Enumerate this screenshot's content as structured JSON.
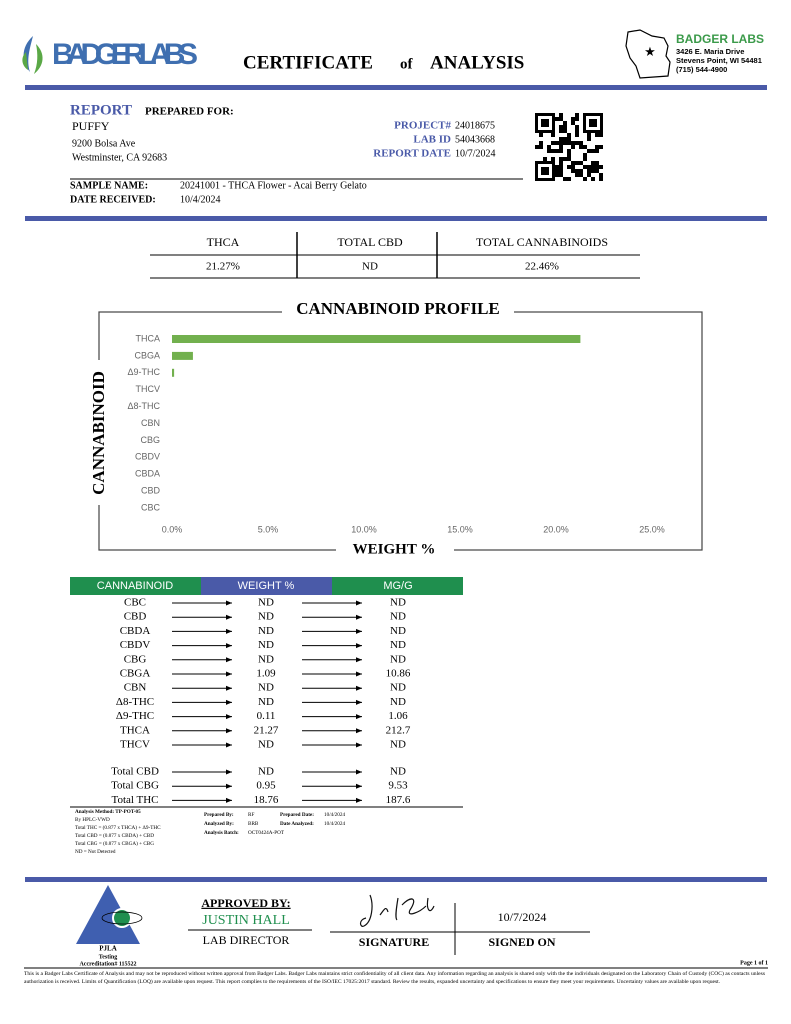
{
  "header": {
    "brand": "BADGER LABS",
    "title": [
      "CERTIFICATE",
      "of",
      "ANALYSIS"
    ],
    "lab_name": "BADGER LABS",
    "lab_address": [
      "3426 E. Maria Drive",
      "Stevens Point, WI 54481",
      "(715) 544-4900"
    ]
  },
  "report": {
    "heading": "REPORT",
    "subheading": "PREPARED FOR:",
    "client": "PUFFY",
    "address": [
      "9200 Bolsa Ave",
      "Westminster, CA 92683"
    ],
    "fields": [
      {
        "label": "PROJECT#",
        "value": "24018675"
      },
      {
        "label": "LAB ID",
        "value": "54043668"
      },
      {
        "label": "REPORT DATE",
        "value": "10/7/2024"
      }
    ],
    "sample": [
      {
        "label": "SAMPLE NAME:",
        "value": "20241001 - THCA Flower - Acai Berry Gelato"
      },
      {
        "label": "DATE RECEIVED:",
        "value": "10/4/2024"
      }
    ]
  },
  "summary": {
    "headers": [
      "THCA",
      "TOTAL CBD",
      "TOTAL CANNABINOIDS"
    ],
    "values": [
      "21.27%",
      "ND",
      "22.46%"
    ]
  },
  "chart_data": {
    "type": "bar",
    "orientation": "horizontal",
    "title": "CANNABINOID PROFILE",
    "ylabel": "CANNABINOID",
    "xlabel": "WEIGHT %",
    "categories": [
      "THCA",
      "CBGA",
      "Δ9-THC",
      "THCV",
      "Δ8-THC",
      "CBN",
      "CBG",
      "CBDV",
      "CBDA",
      "CBD",
      "CBC"
    ],
    "values": [
      21.27,
      1.09,
      0.11,
      0,
      0,
      0,
      0,
      0,
      0,
      0,
      0
    ],
    "color": "#72b04e",
    "xlim": [
      0,
      25
    ],
    "xticks": [
      {
        "value": 0,
        "label": "0.0%"
      },
      {
        "value": 5,
        "label": "5.0%"
      },
      {
        "value": 10,
        "label": "10.0%"
      },
      {
        "value": 15,
        "label": "15.0%"
      },
      {
        "value": 20,
        "label": "20.0%"
      },
      {
        "value": 25,
        "label": "25.0%"
      }
    ],
    "grid": false
  },
  "results": {
    "headers": [
      "CANNABINOID",
      "WEIGHT %",
      "MG/G"
    ],
    "rows": [
      [
        "CBC",
        "ND",
        "ND"
      ],
      [
        "CBD",
        "ND",
        "ND"
      ],
      [
        "CBDA",
        "ND",
        "ND"
      ],
      [
        "CBDV",
        "ND",
        "ND"
      ],
      [
        "CBG",
        "ND",
        "ND"
      ],
      [
        "CBGA",
        1.09,
        10.86
      ],
      [
        "CBN",
        "ND",
        "ND"
      ],
      [
        "Δ8-THC",
        "ND",
        "ND"
      ],
      [
        "Δ9-THC",
        0.11,
        1.06
      ],
      [
        "THCA",
        21.27,
        212.7
      ],
      [
        "THCV",
        "ND",
        "ND"
      ]
    ],
    "totals": [
      [
        "Total CBD",
        "ND",
        "ND"
      ],
      [
        "Total CBG",
        0.95,
        9.53
      ],
      [
        "Total THC",
        18.76,
        187.6
      ]
    ]
  },
  "method_notes": [
    "Analysis Method: TP-POT-05",
    "By HPLC-VWD",
    "Total THC = (0.877 x THCA) + Δ9-THC",
    "Total CBD = (0.877 x CBDA) + CBD",
    "Total CBG = (0.877 x CBGA) + CBG",
    "ND = Not Detected"
  ],
  "prep": [
    {
      "label": "Prepared By:",
      "value": "RF"
    },
    {
      "label": "Prepared Date:",
      "value": "10/4/2024"
    },
    {
      "label": "Analyzed By:",
      "value": "BRB"
    },
    {
      "label": "Date Analyzed:",
      "value": "10/4/2024"
    },
    {
      "label": "Analysis Batch:",
      "value": "OCT0424A-POT"
    }
  ],
  "footer": {
    "accreditation": [
      "PJLA",
      "Testing",
      "Accreditation# 115522"
    ],
    "approval_heading": "APPROVED BY:",
    "approver": "JUSTIN HALL",
    "role": "LAB DIRECTOR",
    "signature_label": "SIGNATURE",
    "signed_date": "10/7/2024",
    "signed_label": "SIGNED ON",
    "page": "Page 1 of 1",
    "disclaimer": "This is a Badger Labs Certificate of Analysis and may not be reproduced without written approval from Badger Labs. Badger Labs maintains strict confidentiality of all client data. Any information regarding an analysis is shared only with the the individuals designated on the Laboratory Chain of Custody (COC) as contacts unless authorization is received. Limits of Quantification (LOQ) are available upon request. This report complies to the requirements of the ISO/IEC 17025:2017 standard. Review the results, expanded uncertainty and specifications to ensure they meet your requirements. Uncertainty values are available upon request."
  }
}
